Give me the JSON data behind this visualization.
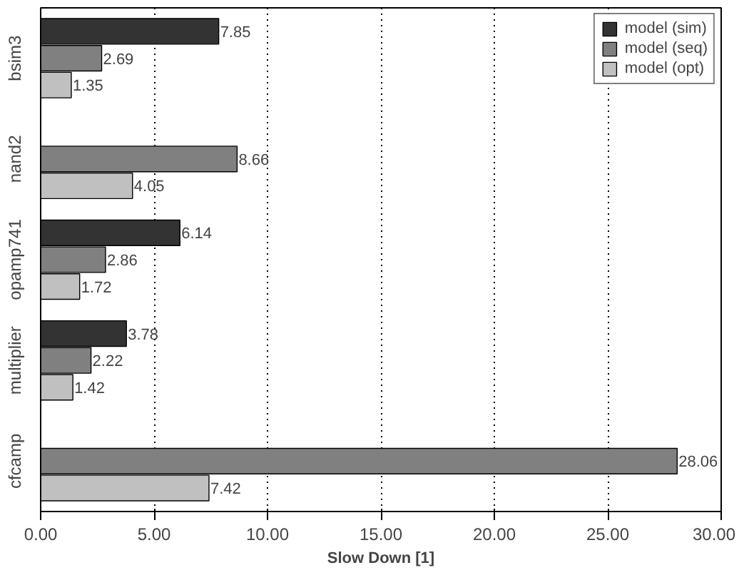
{
  "chart_data": {
    "type": "bar",
    "orientation": "horizontal",
    "categories": [
      "bsim3",
      "nand2",
      "opamp741",
      "multiplier",
      "cfcamp"
    ],
    "series": [
      {
        "name": "model (sim)",
        "color": "#333333",
        "values": [
          7.85,
          null,
          6.14,
          3.78,
          null
        ]
      },
      {
        "name": "model (seq)",
        "color": "#808080",
        "values": [
          2.69,
          8.66,
          2.86,
          2.22,
          28.06
        ]
      },
      {
        "name": "model (opt)",
        "color": "#c0c0c0",
        "values": [
          1.35,
          4.05,
          1.72,
          1.42,
          7.42
        ]
      }
    ],
    "xlabel": "Slow Down [1]",
    "xlim": [
      0,
      30
    ],
    "xticks": [
      {
        "value": 0,
        "label": "0.00"
      },
      {
        "value": 5,
        "label": "5.00"
      },
      {
        "value": 10,
        "label": "10.00"
      },
      {
        "value": 15,
        "label": "15.00"
      },
      {
        "value": 20,
        "label": "20.00"
      },
      {
        "value": 25,
        "label": "25.00"
      },
      {
        "value": 30,
        "label": "30.00"
      }
    ],
    "grid": "x",
    "legend": "top right",
    "data_labels": true
  }
}
